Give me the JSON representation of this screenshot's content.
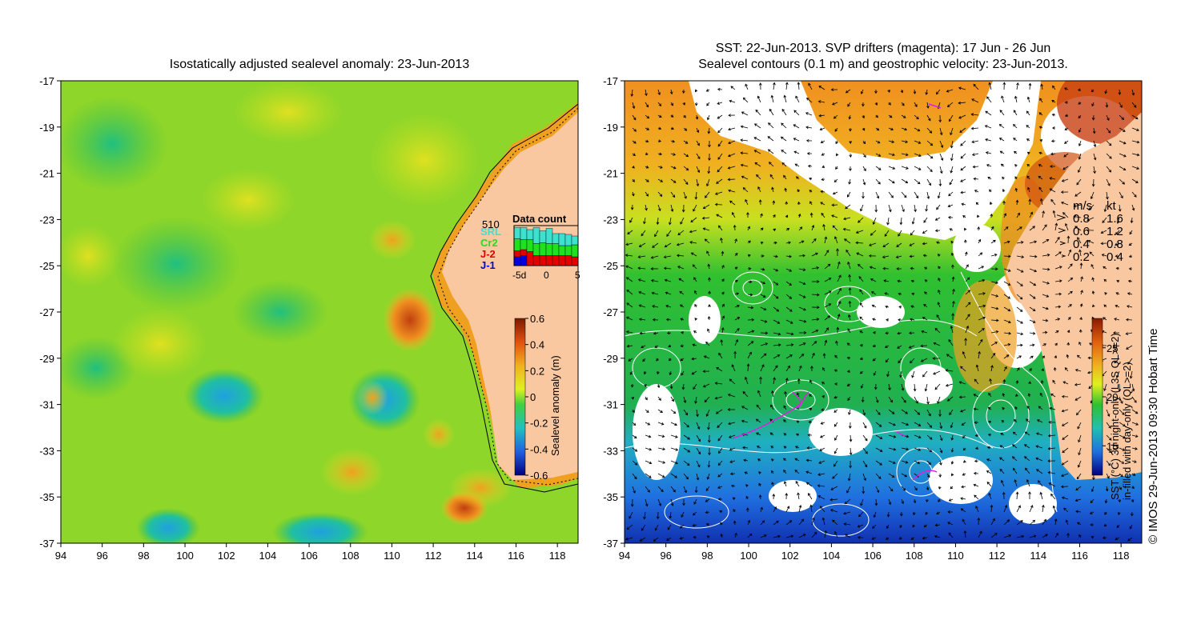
{
  "left_panel": {
    "title": "Isostatically adjusted sealevel anomaly: 23-Jun-2013",
    "x_ticks": [
      "94",
      "96",
      "98",
      "100",
      "102",
      "104",
      "106",
      "108",
      "110",
      "112",
      "114",
      "116",
      "118"
    ],
    "y_ticks": [
      "-17",
      "-19",
      "-21",
      "-23",
      "-25",
      "-27",
      "-29",
      "-31",
      "-33",
      "-35",
      "-37"
    ],
    "x_range": [
      94,
      119
    ],
    "y_range": [
      -37,
      -17
    ],
    "colorbar": {
      "label": "Sealevel anomaly (m)",
      "ticks": [
        "0.6",
        "0.4",
        "0.2",
        "0",
        "-0.2",
        "-0.4",
        "-0.6"
      ],
      "range": [
        -0.6,
        0.6
      ]
    },
    "data_count": {
      "title": "Data count",
      "max_label": "510",
      "satellites": [
        {
          "name": "SRL",
          "color": "#40e0d0"
        },
        {
          "name": "Cr2",
          "color": "#20e020"
        },
        {
          "name": "J-2",
          "color": "#e00000"
        },
        {
          "name": "J-1",
          "color": "#0000e0"
        }
      ],
      "axis_ticks": [
        "-5d",
        "0",
        "5"
      ],
      "bars": [
        {
          "srl": 0.28,
          "cr2": 0.3,
          "j2": 0.15,
          "j1": 0.22
        },
        {
          "srl": 0.3,
          "cr2": 0.25,
          "j2": 0.15,
          "j1": 0.25
        },
        {
          "srl": 0.25,
          "cr2": 0.3,
          "j2": 0.35,
          "j1": 0
        },
        {
          "srl": 0.4,
          "cr2": 0.3,
          "j2": 0.25,
          "j1": 0
        },
        {
          "srl": 0.3,
          "cr2": 0.32,
          "j2": 0.25,
          "j1": 0
        },
        {
          "srl": 0.38,
          "cr2": 0.3,
          "j2": 0.25,
          "j1": 0
        },
        {
          "srl": 0.25,
          "cr2": 0.3,
          "j2": 0.25,
          "j1": 0
        },
        {
          "srl": 0.3,
          "cr2": 0.25,
          "j2": 0.25,
          "j1": 0
        },
        {
          "srl": 0.28,
          "cr2": 0.25,
          "j2": 0.25,
          "j1": 0
        },
        {
          "srl": 0.22,
          "cr2": 0.3,
          "j2": 0.22,
          "j1": 0
        }
      ]
    }
  },
  "right_panel": {
    "title_line1": "SST: 22-Jun-2013. SVP drifters (magenta): 17 Jun - 26 Jun",
    "title_line2": "Sealevel contours (0.1 m) and geostrophic velocity: 23-Jun-2013.",
    "x_ticks": [
      "94",
      "96",
      "98",
      "100",
      "102",
      "104",
      "106",
      "108",
      "110",
      "112",
      "114",
      "116",
      "118"
    ],
    "y_ticks": [
      "-17",
      "-19",
      "-21",
      "-23",
      "-25",
      "-27",
      "-29",
      "-31",
      "-33",
      "-35",
      "-37"
    ],
    "x_range": [
      94,
      119
    ],
    "y_range": [
      -37,
      -17
    ],
    "speed_legend": {
      "header_ms": "m/s",
      "header_kt": "kt",
      "rows": [
        {
          "ms": "0.8",
          "kt": "1.6"
        },
        {
          "ms": "0.6",
          "kt": "1.2"
        },
        {
          "ms": "0.4",
          "kt": "0.8"
        },
        {
          "ms": "0.2",
          "kt": "0.4"
        }
      ]
    },
    "colorbar": {
      "label_line1": "SST (°C) 3d night-only (L3S QL>=2)",
      "label_line2": "in-filled with day-only (QL>=2)",
      "ticks": [
        "25",
        "20",
        "15"
      ],
      "tick_values": [
        25,
        20,
        15
      ],
      "range": [
        12,
        28
      ]
    }
  },
  "credit": "© IMOS 29-Jun-2013 09:30 Hobart Time",
  "colors": {
    "land": "#f9c8a0",
    "sla_mid": "#70d020",
    "sst_warm": "#f0a020",
    "sst_cold": "#1060d0",
    "contour": "#ffffff",
    "drifter": "#e020e0"
  }
}
